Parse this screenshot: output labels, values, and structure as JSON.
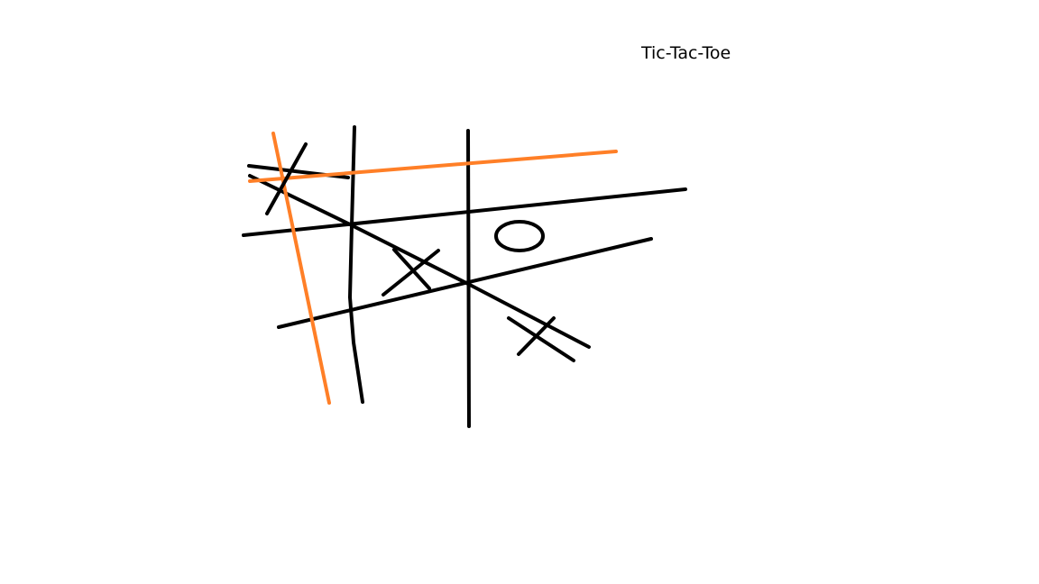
{
  "canvas": {
    "title": "Tic-Tac-Toe",
    "background_color": "#ffffff"
  },
  "sketch": {
    "ink_color": "#000000",
    "highlight_color": "#ff7f27",
    "marks": [
      "X",
      "X",
      "X",
      "O"
    ]
  }
}
